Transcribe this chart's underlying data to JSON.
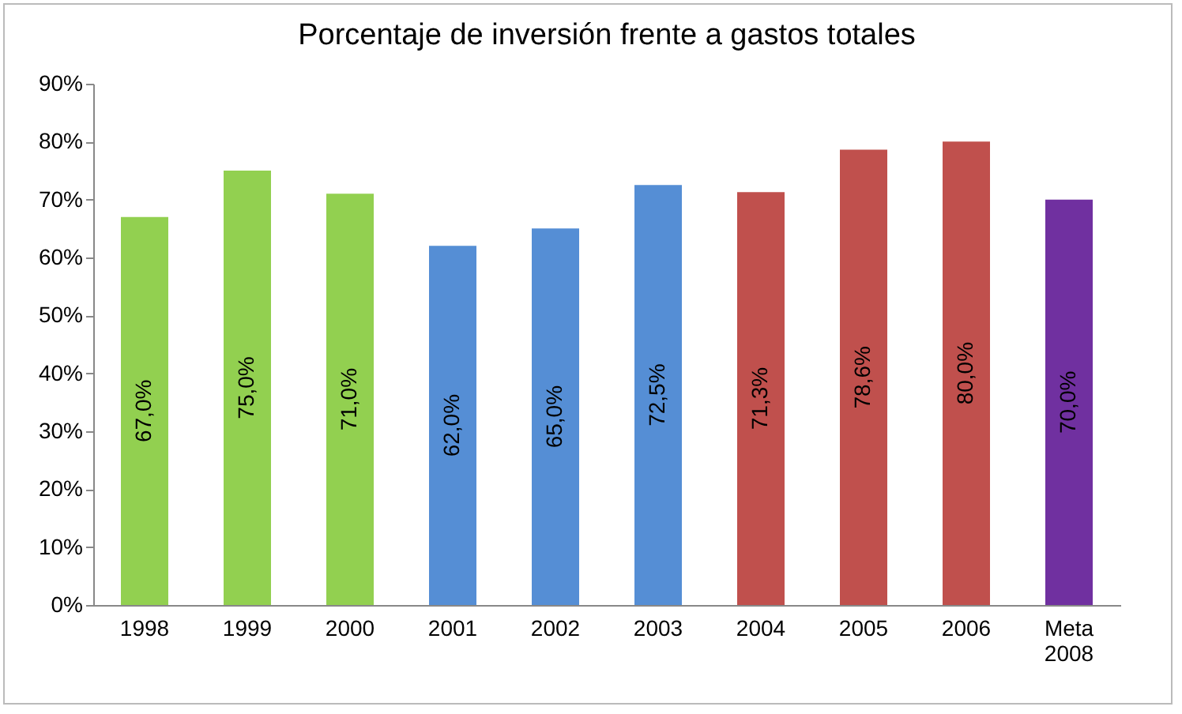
{
  "chart_data": {
    "type": "bar",
    "title": "Porcentaje de inversión frente a gastos totales",
    "categories": [
      "1998",
      "1999",
      "2000",
      "2001",
      "2002",
      "2003",
      "2004",
      "2005",
      "2006",
      "Meta 2008"
    ],
    "values": [
      67,
      75,
      71,
      62,
      65,
      72.5,
      71.3,
      78.6,
      80,
      70
    ],
    "colors": [
      "#92d050",
      "#92d050",
      "#92d050",
      "#558ed5",
      "#558ed5",
      "#558ed5",
      "#c0504d",
      "#c0504d",
      "#c0504d",
      "#7030a0"
    ],
    "value_labels": [
      "67,0%",
      "75,0%",
      "71,0%",
      "62,0%",
      "65,0%",
      "72,5%",
      "71,3%",
      "78,6%",
      "80,0%",
      "70,0%"
    ],
    "ylim": [
      0,
      90
    ],
    "yticks": [
      {
        "value": 0,
        "label": "0%"
      },
      {
        "value": 10,
        "label": "10%"
      },
      {
        "value": 20,
        "label": "20%"
      },
      {
        "value": 30,
        "label": "30%"
      },
      {
        "value": 40,
        "label": "40%"
      },
      {
        "value": 50,
        "label": "50%"
      },
      {
        "value": 60,
        "label": "60%"
      },
      {
        "value": 70,
        "label": "70%"
      },
      {
        "value": 80,
        "label": "80%"
      },
      {
        "value": 90,
        "label": "90%"
      }
    ],
    "grid": false
  }
}
